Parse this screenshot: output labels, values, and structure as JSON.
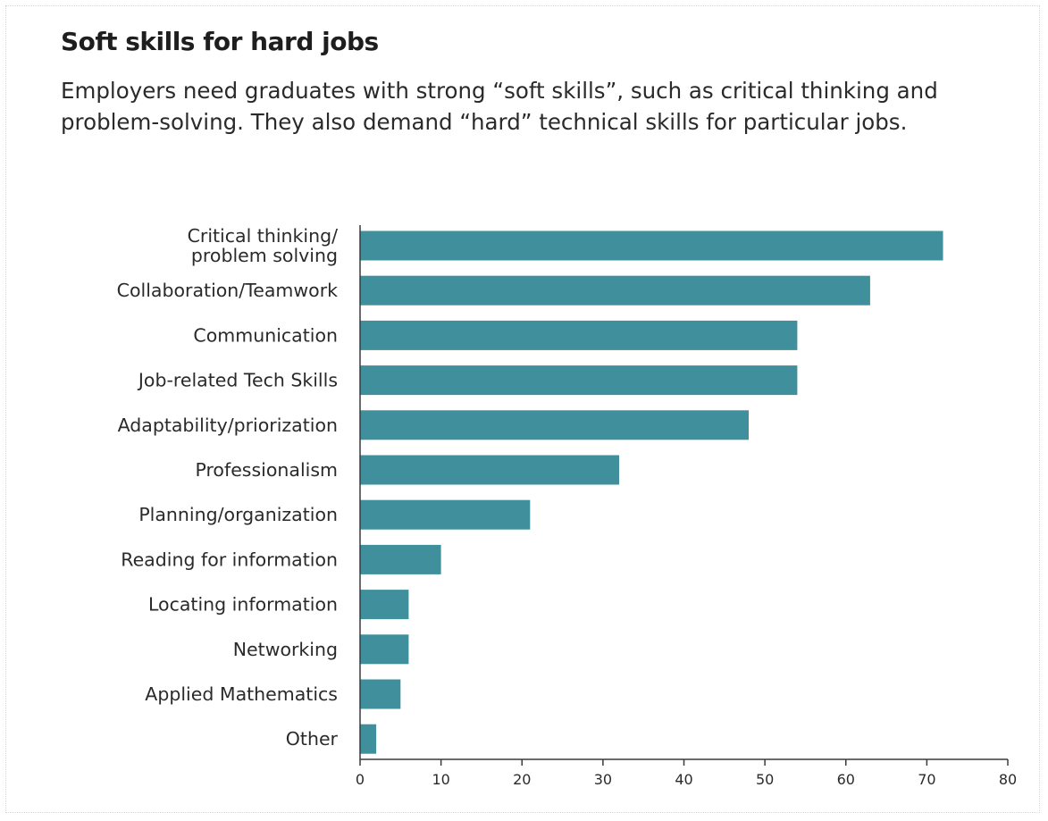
{
  "header": {
    "title": "Soft skills for hard jobs",
    "subtitle": "Employers need graduates with strong “soft skills”, such as critical thinking and problem-solving. They also demand “hard” technical skills for particular jobs."
  },
  "colors": {
    "bar": "#3f8f9c",
    "axis": "#3a3a3a",
    "text": "#2a2a2a"
  },
  "chart_data": {
    "type": "bar",
    "orientation": "horizontal",
    "title": "Soft skills for hard jobs",
    "subtitle": "Employers need graduates with strong “soft skills”, such as critical thinking and problem-solving. They also demand “hard” technical skills for particular jobs.",
    "xlabel": "",
    "ylabel": "",
    "categories": [
      [
        "Critical thinking/",
        "problem solving"
      ],
      [
        "Collaboration/Teamwork"
      ],
      [
        "Communication"
      ],
      [
        "Job-related Tech Skills"
      ],
      [
        "Adaptability/priorization"
      ],
      [
        "Professionalism"
      ],
      [
        "Planning/organization"
      ],
      [
        "Reading for information"
      ],
      [
        "Locating information"
      ],
      [
        "Networking"
      ],
      [
        "Applied Mathematics"
      ],
      [
        "Other"
      ]
    ],
    "values": [
      72,
      63,
      54,
      54,
      48,
      32,
      21,
      10,
      6,
      6,
      5,
      2
    ],
    "xlim": [
      0,
      80
    ],
    "xticks": [
      0,
      10,
      20,
      30,
      40,
      50,
      60,
      70,
      80
    ],
    "grid": false,
    "legend": "none"
  }
}
